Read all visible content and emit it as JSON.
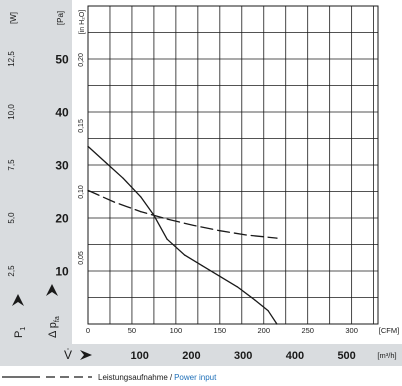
{
  "chart_data": {
    "type": "line",
    "x_unit_label": "[CFM]",
    "x_ticks": [
      "0",
      "50",
      "100",
      "150",
      "200",
      "250",
      "300"
    ],
    "x2_symbol": "V̇",
    "x2_unit_label": "[m³/h]",
    "x2_ticks": [
      "100",
      "200",
      "300",
      "400",
      "500"
    ],
    "xlim": [
      0,
      330
    ],
    "y_pa_unit_label": "[Pa]",
    "y_pa_symbol": "Δ p",
    "y_pa_subscript": "fa",
    "y_pa_ticks": [
      "10",
      "20",
      "30",
      "40",
      "50"
    ],
    "ylim_pa": [
      0,
      60
    ],
    "y_inh2o_unit_label": "[in H₂O]",
    "y_inh2o_ticks": [
      "0,05",
      "0,10",
      "0,15",
      "0,20"
    ],
    "y_w_unit_label": "[W]",
    "y_w_symbol": "P",
    "y_w_subscript": "1",
    "y_w_ticks": [
      "2,5",
      "5,0",
      "7,5",
      "10,0",
      "12,5"
    ],
    "ylim_w": [
      0,
      15
    ],
    "grid": true,
    "series": [
      {
        "name": "",
        "axis": "pa",
        "style": "solid",
        "x": [
          0,
          20,
          40,
          60,
          75,
          90,
          110,
          130,
          150,
          170,
          190,
          205,
          215
        ],
        "y": [
          33.5,
          30.5,
          27.5,
          24,
          20.5,
          16,
          13,
          11,
          9,
          7,
          4.5,
          2.5,
          0
        ]
      },
      {
        "name": "",
        "axis": "w",
        "style": "dashed",
        "x": [
          0,
          30,
          60,
          90,
          120,
          150,
          180,
          215
        ],
        "y": [
          6.3,
          5.75,
          5.3,
          4.95,
          4.65,
          4.4,
          4.2,
          4.05
        ]
      }
    ],
    "legend": {
      "label_de": "Leistungsaufnahme",
      "separator": "/",
      "label_en": "Power input"
    }
  },
  "colors": {
    "line": "#1a1a1a",
    "grid": "#1a1a1a",
    "band": "#d9dcdf",
    "accent_blue": "#1e6fb8"
  }
}
